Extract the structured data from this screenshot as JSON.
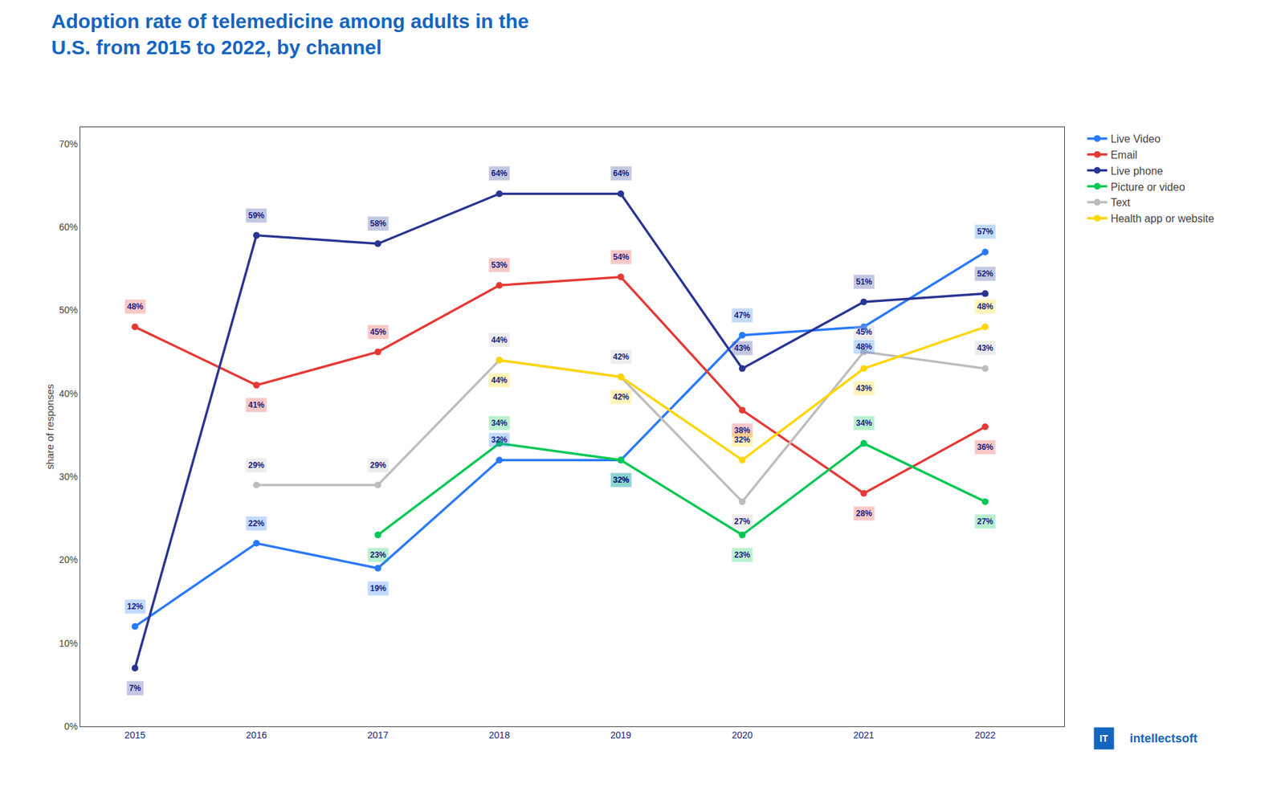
{
  "chart_data": {
    "type": "line",
    "title": "Adoption rate of telemedicine among adults in the\nU.S. from 2015 to 2022, by channel",
    "ylabel": "share of responses",
    "x": [
      2015,
      2016,
      2017,
      2018,
      2019,
      2020,
      2021,
      2022
    ],
    "xlim": [
      2014.55,
      2022.65
    ],
    "xticks": [
      2015,
      2016,
      2017,
      2018,
      2019,
      2020,
      2021,
      2022
    ],
    "ylim": [
      0,
      72
    ],
    "yticks": [
      {
        "value": 0,
        "label": "0%"
      },
      {
        "value": 10,
        "label": "10%"
      },
      {
        "value": 20,
        "label": "20%"
      },
      {
        "value": 30,
        "label": "30%"
      },
      {
        "value": 40,
        "label": "40%"
      },
      {
        "value": 50,
        "label": "50%"
      },
      {
        "value": 60,
        "label": "60%"
      },
      {
        "value": 70,
        "label": "70%"
      }
    ],
    "grid": false,
    "legend": "right",
    "data_labels": true,
    "marker": "circle",
    "annotations": [
      "IT",
      "intellectsoft"
    ],
    "series": [
      {
        "name": "Live Video",
        "color": "#2979FF",
        "values": [
          12,
          22,
          19,
          32,
          32,
          47,
          48,
          57
        ],
        "value_labels": [
          "12%",
          "22%",
          "19%",
          "32%",
          "32%",
          "47%",
          "48%",
          "57%"
        ]
      },
      {
        "name": "Email",
        "color": "#E53935",
        "values": [
          48,
          41,
          45,
          53,
          54,
          38,
          28,
          36
        ],
        "value_labels": [
          "48%",
          "41%",
          "45%",
          "53%",
          "54%",
          "38%",
          "28%",
          "36%"
        ]
      },
      {
        "name": "Live phone",
        "color": "#283593",
        "values": [
          7,
          59,
          58,
          64,
          64,
          43,
          51,
          52
        ],
        "value_labels": [
          "7%",
          "59%",
          "58%",
          "64%",
          "64%",
          "43%",
          "51%",
          "52%"
        ]
      },
      {
        "name": "Picture or video",
        "color": "#00C853",
        "values": [
          null,
          null,
          23,
          34,
          32,
          23,
          34,
          27
        ],
        "value_labels": [
          null,
          null,
          "23%",
          "34%",
          "32%",
          "23%",
          "34%",
          "27%"
        ]
      },
      {
        "name": "Text",
        "color": "#BDBDBD",
        "values": [
          null,
          29,
          29,
          44,
          42,
          27,
          45,
          43
        ],
        "value_labels": [
          null,
          "29%",
          "29%",
          "44%",
          "42%",
          "27%",
          "45%",
          "43%"
        ]
      },
      {
        "name": "Health app or website",
        "color": "#FFD600",
        "values": [
          null,
          null,
          null,
          44,
          42,
          32,
          43,
          48
        ],
        "value_labels": [
          null,
          null,
          null,
          "44%",
          "42%",
          "32%",
          "43%",
          "48%"
        ]
      }
    ]
  }
}
